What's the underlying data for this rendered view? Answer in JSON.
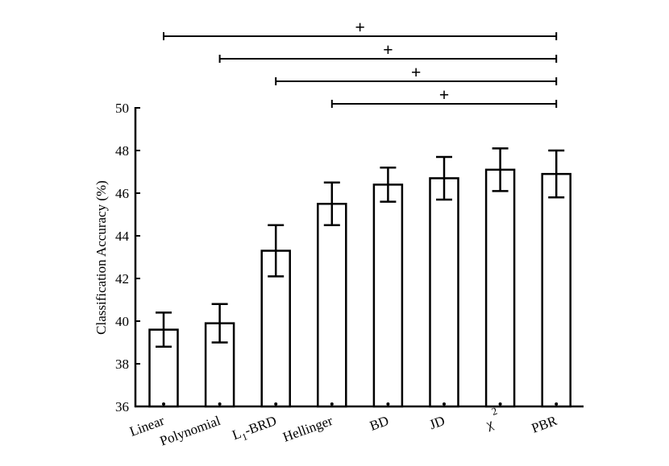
{
  "chart_data": {
    "type": "bar",
    "title": "",
    "xlabel": "",
    "ylabel": "Classification Accuracy (%)",
    "ylim": [
      36,
      50
    ],
    "yticks": [
      "36",
      "38",
      "40",
      "42",
      "44",
      "46",
      "48",
      "50"
    ],
    "categories": [
      {
        "main": "Linear"
      },
      {
        "main": "Polynomial"
      },
      {
        "main": "L",
        "sub": "1",
        "rest": "-BRD"
      },
      {
        "main": "Hellinger"
      },
      {
        "main": "BD"
      },
      {
        "main": "JD"
      },
      {
        "main": "χ",
        "sup": "2"
      },
      {
        "main": "PBR"
      }
    ],
    "values": [
      39.6,
      39.9,
      43.3,
      45.5,
      46.4,
      46.7,
      47.1,
      46.9
    ],
    "error_low": [
      38.8,
      39.0,
      42.1,
      44.5,
      45.6,
      45.7,
      46.1,
      45.8
    ],
    "error_high": [
      40.4,
      40.8,
      44.5,
      46.5,
      47.2,
      47.7,
      48.1,
      48.0
    ],
    "significance": [
      {
        "from": 0,
        "to": 7,
        "label": "+"
      },
      {
        "from": 1,
        "to": 7,
        "label": "+"
      },
      {
        "from": 2,
        "to": 7,
        "label": "+"
      },
      {
        "from": 3,
        "to": 7,
        "label": "+"
      }
    ],
    "grid": false,
    "legend": "none"
  }
}
